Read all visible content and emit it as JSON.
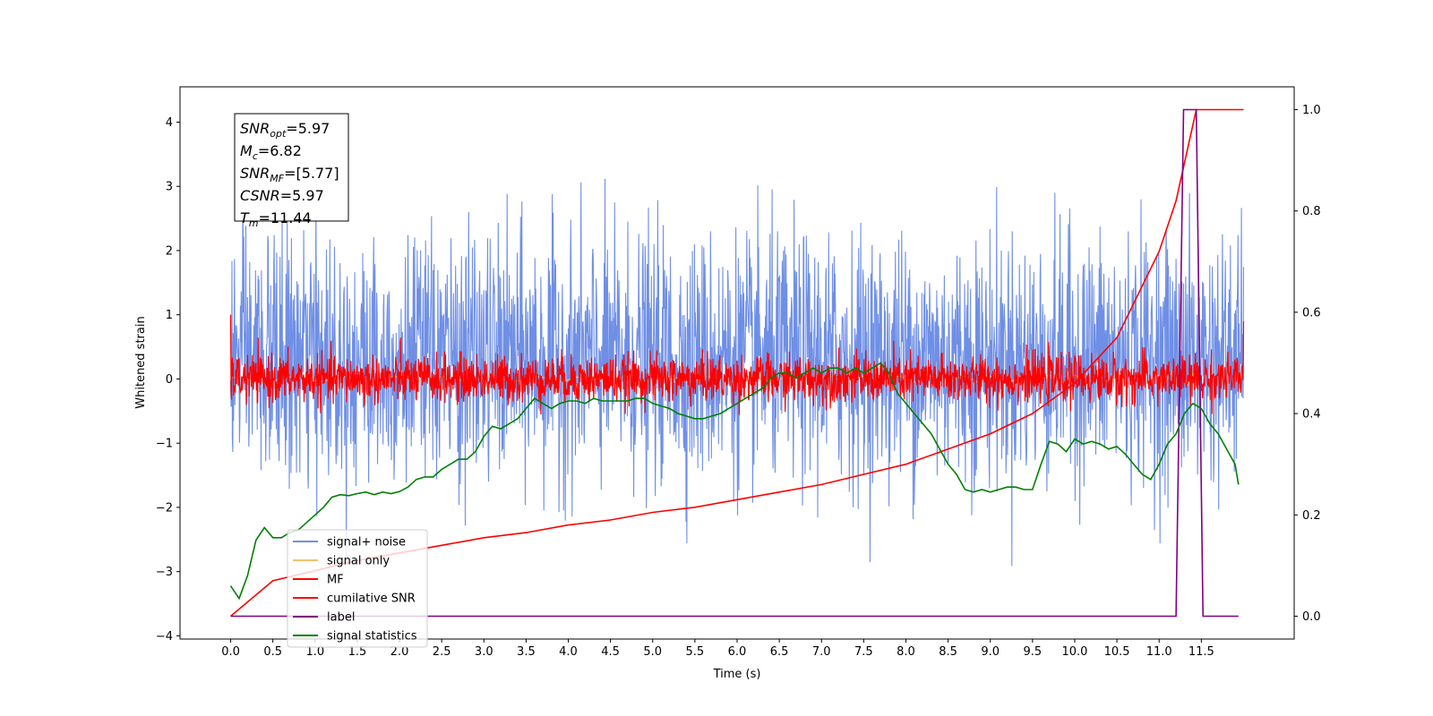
{
  "chart_data": {
    "type": "line",
    "title": "",
    "xlabel": "Time (s)",
    "ylabel": "Whitened strain",
    "xlim": [
      -0.6,
      12.6
    ],
    "ylim": [
      -4.05,
      4.55
    ],
    "y2lim": [
      -0.045,
      1.045
    ],
    "grid": false,
    "legend_position": "lower-left",
    "x_ticks": [
      "0.0",
      "0.5",
      "1.0",
      "1.5",
      "2.0",
      "2.5",
      "3.0",
      "3.5",
      "4.0",
      "4.5",
      "5.0",
      "5.5",
      "6.0",
      "6.5",
      "7.0",
      "7.5",
      "8.0",
      "8.5",
      "9.0",
      "9.5",
      "10.0",
      "10.5",
      "11.0",
      "11.5"
    ],
    "y_ticks": [
      -4,
      -3,
      -2,
      -1,
      0,
      1,
      2,
      3,
      4
    ],
    "y2_ticks": [
      "0.0",
      "0.2",
      "0.4",
      "0.6",
      "0.8",
      "1.0"
    ],
    "annotation": [
      {
        "base": "SNR",
        "sub": "opt",
        "rest": "=5.97"
      },
      {
        "base": "M",
        "sub": "c",
        "rest": "=6.82"
      },
      {
        "base": "SNR",
        "sub": "MF",
        "rest": "=[5.77]"
      },
      {
        "base": "CSNR",
        "sub": "",
        "rest": "=5.97"
      },
      {
        "base": "T",
        "sub": "m",
        "rest": "=11.44"
      }
    ],
    "series": [
      {
        "name": "signal+ noise",
        "color": "#6f8fe6",
        "axis": "left",
        "style": "noise",
        "mean": 0.3,
        "sigma": 0.95,
        "x_start": 0.0,
        "x_end": 12.0
      },
      {
        "name": "signal only",
        "color": "#f5c16c",
        "axis": "left",
        "style": "chirp",
        "x_start": 0.0,
        "x_end": 11.44
      },
      {
        "name": "MF",
        "color": "#ff0000",
        "axis": "left",
        "style": "noise",
        "mean": 0.0,
        "sigma": 0.18,
        "x_start": 0.0,
        "x_end": 12.0
      },
      {
        "name": "cumilative SNR",
        "color": "#ff0000",
        "axis": "right",
        "x": [
          0.0,
          0.5,
          1.0,
          1.5,
          2.0,
          2.5,
          3.0,
          3.5,
          4.0,
          4.5,
          5.0,
          5.5,
          6.0,
          6.5,
          7.0,
          7.5,
          8.0,
          8.5,
          9.0,
          9.5,
          10.0,
          10.5,
          11.0,
          11.2,
          11.44,
          11.5,
          12.0
        ],
        "y": [
          0.0,
          0.07,
          0.09,
          0.11,
          0.125,
          0.14,
          0.155,
          0.165,
          0.18,
          0.19,
          0.205,
          0.215,
          0.23,
          0.245,
          0.26,
          0.28,
          0.3,
          0.33,
          0.36,
          0.4,
          0.46,
          0.55,
          0.72,
          0.82,
          1.0,
          1.0,
          1.0
        ]
      },
      {
        "name": "label",
        "color": "#800080",
        "axis": "right",
        "x": [
          0.0,
          11.2,
          11.29,
          11.44,
          11.52,
          11.6,
          11.94
        ],
        "y": [
          0.0,
          0.0,
          1.0,
          1.0,
          0.0,
          0.0,
          0.0
        ]
      },
      {
        "name": "signal statistics",
        "color": "#008000",
        "axis": "right",
        "x": [
          0.0,
          0.1,
          0.2,
          0.3,
          0.4,
          0.5,
          0.6,
          0.7,
          0.8,
          0.9,
          1.0,
          1.1,
          1.2,
          1.3,
          1.4,
          1.5,
          1.6,
          1.7,
          1.8,
          1.9,
          2.0,
          2.1,
          2.2,
          2.3,
          2.4,
          2.5,
          2.6,
          2.7,
          2.8,
          2.9,
          3.0,
          3.1,
          3.2,
          3.3,
          3.4,
          3.5,
          3.6,
          3.7,
          3.8,
          3.9,
          4.0,
          4.1,
          4.2,
          4.3,
          4.4,
          4.5,
          4.6,
          4.7,
          4.8,
          4.9,
          5.0,
          5.1,
          5.2,
          5.3,
          5.4,
          5.5,
          5.6,
          5.7,
          5.8,
          5.9,
          6.0,
          6.1,
          6.2,
          6.3,
          6.4,
          6.5,
          6.6,
          6.7,
          6.8,
          6.9,
          7.0,
          7.1,
          7.2,
          7.3,
          7.4,
          7.5,
          7.6,
          7.7,
          7.8,
          7.9,
          8.0,
          8.1,
          8.2,
          8.3,
          8.4,
          8.5,
          8.6,
          8.7,
          8.8,
          8.9,
          9.0,
          9.1,
          9.2,
          9.3,
          9.4,
          9.5,
          9.6,
          9.7,
          9.8,
          9.9,
          10.0,
          10.1,
          10.2,
          10.3,
          10.4,
          10.5,
          10.6,
          10.7,
          10.8,
          10.9,
          11.0,
          11.1,
          11.2,
          11.3,
          11.4,
          11.5,
          11.6,
          11.7,
          11.8,
          11.9,
          11.94
        ],
        "y": [
          0.06,
          0.035,
          0.08,
          0.15,
          0.175,
          0.155,
          0.155,
          0.165,
          0.17,
          0.185,
          0.2,
          0.215,
          0.235,
          0.24,
          0.238,
          0.242,
          0.245,
          0.24,
          0.245,
          0.242,
          0.246,
          0.255,
          0.27,
          0.275,
          0.275,
          0.29,
          0.3,
          0.31,
          0.31,
          0.325,
          0.355,
          0.375,
          0.37,
          0.38,
          0.39,
          0.41,
          0.43,
          0.42,
          0.41,
          0.42,
          0.425,
          0.425,
          0.42,
          0.43,
          0.425,
          0.425,
          0.425,
          0.425,
          0.43,
          0.43,
          0.42,
          0.415,
          0.41,
          0.4,
          0.395,
          0.39,
          0.39,
          0.395,
          0.4,
          0.41,
          0.42,
          0.43,
          0.44,
          0.45,
          0.47,
          0.48,
          0.48,
          0.47,
          0.48,
          0.49,
          0.48,
          0.49,
          0.49,
          0.48,
          0.49,
          0.48,
          0.49,
          0.5,
          0.48,
          0.44,
          0.42,
          0.4,
          0.38,
          0.36,
          0.33,
          0.3,
          0.28,
          0.25,
          0.245,
          0.25,
          0.245,
          0.25,
          0.255,
          0.255,
          0.25,
          0.25,
          0.3,
          0.345,
          0.34,
          0.325,
          0.35,
          0.34,
          0.345,
          0.34,
          0.33,
          0.335,
          0.32,
          0.3,
          0.28,
          0.27,
          0.3,
          0.34,
          0.36,
          0.4,
          0.42,
          0.41,
          0.38,
          0.36,
          0.33,
          0.3,
          0.26
        ]
      }
    ]
  }
}
